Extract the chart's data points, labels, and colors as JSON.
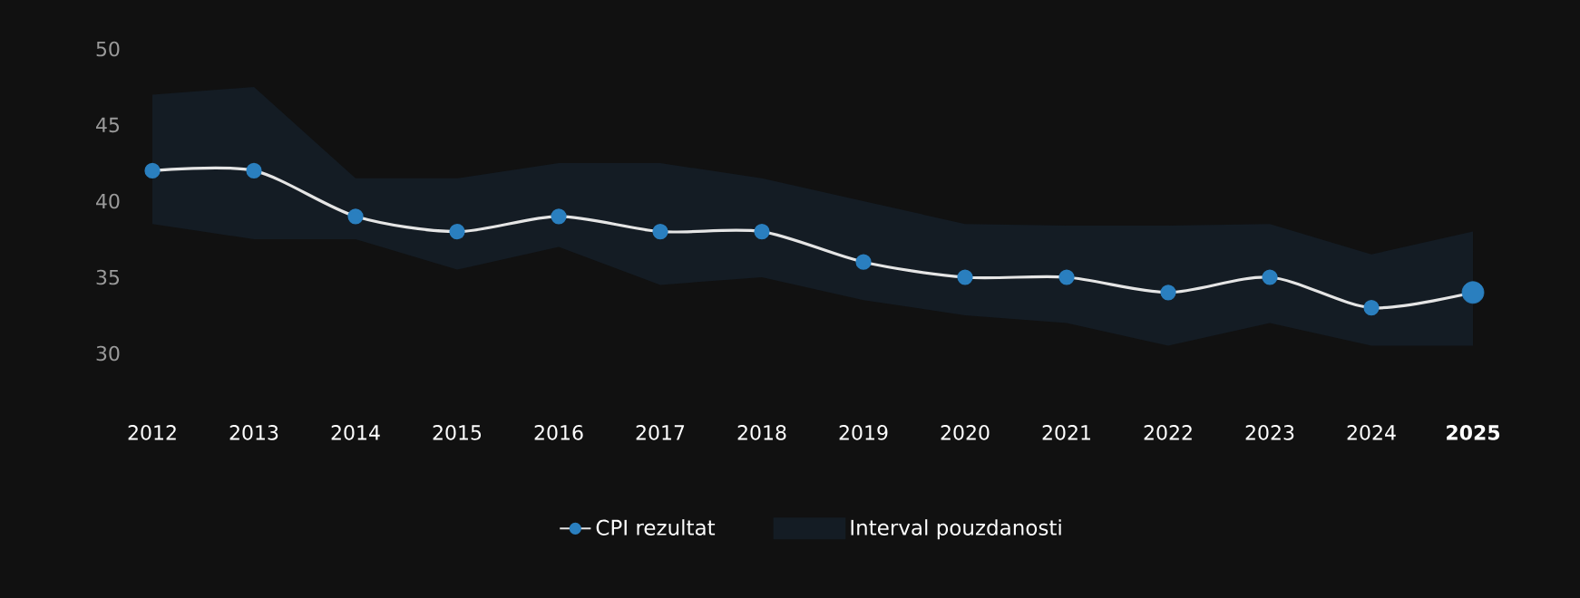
{
  "chart_data": {
    "type": "line",
    "categories": [
      "2012",
      "2013",
      "2014",
      "2015",
      "2016",
      "2017",
      "2018",
      "2019",
      "2020",
      "2021",
      "2022",
      "2023",
      "2024",
      "2025"
    ],
    "series": [
      {
        "name": "CPI rezultat",
        "color": "#2a7fbf",
        "values": [
          42,
          42,
          39,
          38,
          39,
          38,
          38,
          36,
          35,
          35,
          34,
          35,
          33,
          34
        ]
      },
      {
        "name": "Interval pouzdanosti",
        "type": "area",
        "color": "#141c24",
        "values": [
          null,
          null,
          null,
          null,
          null,
          null,
          null,
          null,
          null,
          null,
          null,
          null,
          null,
          null
        ],
        "lower": [
          38.5,
          37.5,
          37.5,
          35.5,
          37,
          34.5,
          35,
          33.5,
          32.5,
          32,
          30.5,
          32,
          30.5,
          30.5
        ],
        "upper": [
          47,
          47.5,
          41.5,
          41.5,
          42.5,
          42.5,
          41.5,
          40,
          38.5,
          38.4,
          38.4,
          38.5,
          36.5,
          38
        ]
      }
    ],
    "ylim": [
      30,
      50
    ],
    "yticks": [
      30,
      35,
      40,
      45,
      50
    ],
    "grid": false,
    "legend": "bottom",
    "marker": "circle",
    "line_style": "solid"
  }
}
